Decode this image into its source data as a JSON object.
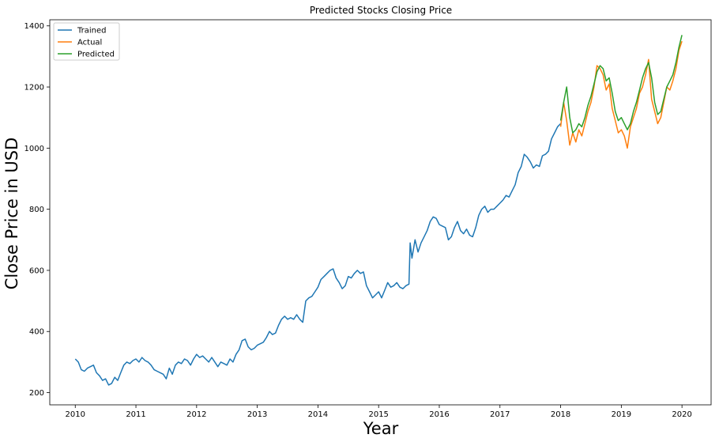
{
  "chart_data": {
    "type": "line",
    "title": "Predicted Stocks Closing Price",
    "xlabel": "Year",
    "ylabel": "Close Price in USD",
    "xlim": [
      2009.58,
      2020.48
    ],
    "ylim": [
      160,
      1420
    ],
    "xticks": [
      2010,
      2011,
      2012,
      2013,
      2014,
      2015,
      2016,
      2017,
      2018,
      2019,
      2020
    ],
    "xtick_labels": [
      "2010",
      "2011",
      "2012",
      "2013",
      "2014",
      "2015",
      "2016",
      "2017",
      "2018",
      "2019",
      "2020"
    ],
    "yticks": [
      200,
      400,
      600,
      800,
      1000,
      1200,
      1400
    ],
    "ytick_labels": [
      "200",
      "400",
      "600",
      "800",
      "1000",
      "1200",
      "1400"
    ],
    "grid": false,
    "legend_position": "top-left",
    "series": [
      {
        "name": "Trained",
        "color": "#1f77b4",
        "x": [
          2010.0,
          2010.05,
          2010.1,
          2010.15,
          2010.2,
          2010.3,
          2010.35,
          2010.4,
          2010.45,
          2010.5,
          2010.55,
          2010.6,
          2010.65,
          2010.7,
          2010.75,
          2010.8,
          2010.85,
          2010.9,
          2010.95,
          2011.0,
          2011.05,
          2011.1,
          2011.15,
          2011.2,
          2011.25,
          2011.3,
          2011.35,
          2011.4,
          2011.45,
          2011.5,
          2011.55,
          2011.6,
          2011.65,
          2011.7,
          2011.75,
          2011.8,
          2011.85,
          2011.9,
          2011.95,
          2012.0,
          2012.05,
          2012.1,
          2012.15,
          2012.2,
          2012.25,
          2012.3,
          2012.35,
          2012.4,
          2012.45,
          2012.5,
          2012.55,
          2012.6,
          2012.65,
          2012.7,
          2012.75,
          2012.8,
          2012.85,
          2012.9,
          2012.95,
          2013.0,
          2013.05,
          2013.1,
          2013.15,
          2013.2,
          2013.25,
          2013.3,
          2013.35,
          2013.4,
          2013.45,
          2013.5,
          2013.55,
          2013.6,
          2013.65,
          2013.7,
          2013.75,
          2013.8,
          2013.85,
          2013.9,
          2013.95,
          2014.0,
          2014.05,
          2014.1,
          2014.15,
          2014.2,
          2014.25,
          2014.3,
          2014.35,
          2014.4,
          2014.45,
          2014.5,
          2014.55,
          2014.6,
          2014.65,
          2014.7,
          2014.75,
          2014.8,
          2014.85,
          2014.9,
          2014.95,
          2015.0,
          2015.05,
          2015.1,
          2015.15,
          2015.2,
          2015.25,
          2015.3,
          2015.35,
          2015.4,
          2015.45,
          2015.5,
          2015.52,
          2015.55,
          2015.6,
          2015.65,
          2015.7,
          2015.75,
          2015.8,
          2015.85,
          2015.9,
          2015.95,
          2016.0,
          2016.05,
          2016.1,
          2016.15,
          2016.2,
          2016.25,
          2016.3,
          2016.35,
          2016.4,
          2016.45,
          2016.5,
          2016.55,
          2016.6,
          2016.65,
          2016.7,
          2016.75,
          2016.8,
          2016.85,
          2016.9,
          2016.95,
          2017.0,
          2017.05,
          2017.1,
          2017.15,
          2017.2,
          2017.25,
          2017.3,
          2017.35,
          2017.4,
          2017.45,
          2017.5,
          2017.55,
          2017.6,
          2017.65,
          2017.7,
          2017.75,
          2017.8,
          2017.85,
          2017.9,
          2017.95,
          2018.0
        ],
        "y": [
          310,
          300,
          275,
          270,
          280,
          290,
          265,
          255,
          240,
          245,
          225,
          230,
          250,
          240,
          265,
          290,
          300,
          295,
          305,
          310,
          300,
          315,
          305,
          300,
          290,
          275,
          270,
          265,
          260,
          245,
          280,
          260,
          290,
          300,
          295,
          310,
          305,
          290,
          310,
          325,
          315,
          320,
          310,
          300,
          315,
          300,
          285,
          300,
          295,
          290,
          310,
          300,
          325,
          340,
          370,
          375,
          350,
          340,
          345,
          355,
          360,
          365,
          380,
          400,
          390,
          395,
          420,
          440,
          450,
          440,
          445,
          440,
          455,
          440,
          430,
          500,
          510,
          515,
          530,
          545,
          570,
          580,
          590,
          600,
          605,
          575,
          560,
          540,
          550,
          580,
          575,
          590,
          600,
          590,
          595,
          550,
          530,
          510,
          520,
          530,
          510,
          535,
          560,
          545,
          550,
          560,
          545,
          540,
          550,
          555,
          690,
          640,
          700,
          660,
          690,
          710,
          730,
          760,
          775,
          770,
          750,
          745,
          740,
          700,
          710,
          740,
          760,
          730,
          720,
          735,
          715,
          710,
          740,
          780,
          800,
          810,
          790,
          800,
          800,
          810,
          820,
          830,
          845,
          840,
          860,
          880,
          920,
          940,
          980,
          970,
          955,
          935,
          945,
          940,
          975,
          980,
          990,
          1030,
          1050,
          1070,
          1080
        ]
      },
      {
        "name": "Actual",
        "color": "#ff7f0e",
        "x": [
          2018.0,
          2018.05,
          2018.1,
          2018.15,
          2018.2,
          2018.25,
          2018.3,
          2018.35,
          2018.4,
          2018.45,
          2018.5,
          2018.55,
          2018.6,
          2018.65,
          2018.7,
          2018.75,
          2018.8,
          2018.85,
          2018.9,
          2018.95,
          2019.0,
          2019.05,
          2019.1,
          2019.15,
          2019.2,
          2019.25,
          2019.3,
          2019.35,
          2019.4,
          2019.45,
          2019.5,
          2019.55,
          2019.6,
          2019.65,
          2019.7,
          2019.75,
          2019.8,
          2019.85,
          2019.9,
          2019.95,
          2020.0
        ],
        "y": [
          1070,
          1150,
          1090,
          1010,
          1050,
          1020,
          1060,
          1040,
          1080,
          1120,
          1150,
          1200,
          1270,
          1260,
          1240,
          1190,
          1210,
          1130,
          1090,
          1050,
          1060,
          1040,
          1000,
          1070,
          1100,
          1130,
          1180,
          1200,
          1240,
          1290,
          1160,
          1120,
          1080,
          1100,
          1150,
          1200,
          1190,
          1220,
          1260,
          1320,
          1350
        ]
      },
      {
        "name": "Predicted",
        "color": "#2ca02c",
        "x": [
          2018.0,
          2018.05,
          2018.1,
          2018.15,
          2018.2,
          2018.25,
          2018.3,
          2018.35,
          2018.4,
          2018.45,
          2018.5,
          2018.55,
          2018.6,
          2018.65,
          2018.7,
          2018.75,
          2018.8,
          2018.85,
          2018.9,
          2018.95,
          2019.0,
          2019.05,
          2019.1,
          2019.15,
          2019.2,
          2019.25,
          2019.3,
          2019.35,
          2019.4,
          2019.45,
          2019.5,
          2019.55,
          2019.6,
          2019.65,
          2019.7,
          2019.75,
          2019.8,
          2019.85,
          2019.9,
          2019.95,
          2020.0
        ],
        "y": [
          1090,
          1150,
          1200,
          1100,
          1050,
          1060,
          1080,
          1070,
          1100,
          1140,
          1170,
          1210,
          1250,
          1270,
          1260,
          1220,
          1230,
          1180,
          1120,
          1090,
          1100,
          1080,
          1060,
          1080,
          1120,
          1150,
          1190,
          1230,
          1260,
          1280,
          1230,
          1150,
          1110,
          1120,
          1160,
          1200,
          1220,
          1240,
          1280,
          1330,
          1370
        ]
      }
    ]
  }
}
